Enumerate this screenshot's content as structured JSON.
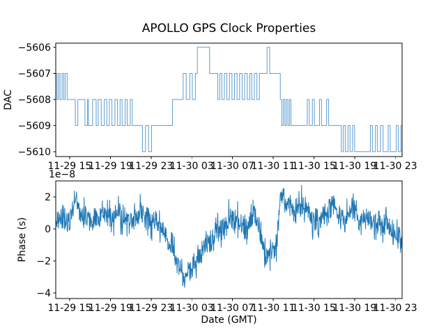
{
  "title": "APOLLO GPS Clock Properties",
  "figure": {
    "background": "#ffffff",
    "spine_color": "#000000",
    "accent_color": "#1f77b4"
  },
  "chart_data": [
    {
      "type": "line",
      "subplot": "dac",
      "ylabel": "DAC",
      "draw_style": "steps-post",
      "line_color": "#5b9dd0",
      "xlim_hours": [
        -1.37,
        32.67
      ],
      "ylim": [
        -5610.19,
        -5605.84
      ],
      "yticks": [
        -5606,
        -5607,
        -5608,
        -5609,
        -5610
      ],
      "ytick_labels": [
        "−5606",
        "−5607",
        "−5608",
        "−5609",
        "−5610"
      ],
      "x_tick_hours": [
        0,
        4,
        8,
        12,
        16,
        20,
        24,
        28,
        32
      ],
      "x_tick_labels": [
        "11-29 15",
        "11-29 19",
        "11-29 23",
        "11-30 03",
        "11-30 07",
        "11-30 11",
        "11-30 15",
        "11-30 19",
        "11-30 23"
      ],
      "grid": false,
      "steps": [
        [
          -1.37,
          -5607
        ],
        [
          -1.25,
          -5608
        ],
        [
          -1.1,
          -5607
        ],
        [
          -0.95,
          -5608
        ],
        [
          -0.75,
          -5607
        ],
        [
          -0.6,
          -5608
        ],
        [
          -0.45,
          -5607
        ],
        [
          -0.25,
          -5608
        ],
        [
          0.55,
          -5609
        ],
        [
          0.8,
          -5608
        ],
        [
          1.5,
          -5609
        ],
        [
          1.75,
          -5608
        ],
        [
          1.85,
          -5609
        ],
        [
          2.25,
          -5608
        ],
        [
          2.6,
          -5609
        ],
        [
          2.8,
          -5608
        ],
        [
          3.1,
          -5609
        ],
        [
          3.4,
          -5608
        ],
        [
          3.65,
          -5609
        ],
        [
          3.9,
          -5608
        ],
        [
          4.15,
          -5609
        ],
        [
          4.45,
          -5608
        ],
        [
          4.7,
          -5609
        ],
        [
          4.95,
          -5608
        ],
        [
          5.15,
          -5609
        ],
        [
          5.45,
          -5608
        ],
        [
          5.65,
          -5609
        ],
        [
          5.95,
          -5608
        ],
        [
          6.15,
          -5609
        ],
        [
          7.15,
          -5610
        ],
        [
          7.45,
          -5609
        ],
        [
          7.75,
          -5610
        ],
        [
          8.05,
          -5609
        ],
        [
          10.1,
          -5608
        ],
        [
          11.15,
          -5607
        ],
        [
          11.45,
          -5608
        ],
        [
          11.8,
          -5607
        ],
        [
          12.05,
          -5608
        ],
        [
          12.35,
          -5607
        ],
        [
          12.55,
          -5606
        ],
        [
          13.75,
          -5607
        ],
        [
          14.55,
          -5608
        ],
        [
          14.75,
          -5607
        ],
        [
          14.95,
          -5608
        ],
        [
          15.2,
          -5607
        ],
        [
          15.45,
          -5608
        ],
        [
          15.7,
          -5607
        ],
        [
          15.95,
          -5608
        ],
        [
          16.2,
          -5607
        ],
        [
          16.45,
          -5608
        ],
        [
          16.7,
          -5607
        ],
        [
          16.95,
          -5608
        ],
        [
          17.2,
          -5607
        ],
        [
          17.45,
          -5608
        ],
        [
          17.7,
          -5607
        ],
        [
          17.9,
          -5608
        ],
        [
          18.15,
          -5607
        ],
        [
          18.4,
          -5608
        ],
        [
          18.65,
          -5607
        ],
        [
          19.4,
          -5606
        ],
        [
          19.65,
          -5607
        ],
        [
          20.7,
          -5608
        ],
        [
          20.85,
          -5609
        ],
        [
          21.0,
          -5608
        ],
        [
          21.15,
          -5609
        ],
        [
          21.3,
          -5608
        ],
        [
          21.45,
          -5609
        ],
        [
          21.6,
          -5608
        ],
        [
          21.75,
          -5609
        ],
        [
          23.35,
          -5608
        ],
        [
          23.55,
          -5609
        ],
        [
          23.85,
          -5608
        ],
        [
          24.05,
          -5609
        ],
        [
          24.55,
          -5608
        ],
        [
          24.75,
          -5609
        ],
        [
          25.25,
          -5608
        ],
        [
          25.45,
          -5609
        ],
        [
          26.7,
          -5610
        ],
        [
          26.9,
          -5609
        ],
        [
          27.1,
          -5610
        ],
        [
          27.35,
          -5609
        ],
        [
          27.55,
          -5610
        ],
        [
          27.8,
          -5609
        ],
        [
          28.0,
          -5610
        ],
        [
          29.55,
          -5609
        ],
        [
          29.75,
          -5610
        ],
        [
          30.05,
          -5609
        ],
        [
          30.25,
          -5610
        ],
        [
          30.55,
          -5609
        ],
        [
          30.8,
          -5610
        ],
        [
          31.3,
          -5609
        ],
        [
          31.5,
          -5610
        ],
        [
          32.1,
          -5609
        ],
        [
          32.3,
          -5610
        ],
        [
          32.55,
          -5609
        ],
        [
          32.67,
          -5609
        ]
      ]
    },
    {
      "type": "line",
      "subplot": "phase",
      "ylabel": "Phase (s)",
      "xlabel": "Date (GMT)",
      "offset_text": "1e−8",
      "line_color": "#1f77b4",
      "xlim_hours": [
        -1.37,
        32.67
      ],
      "ylim": [
        -4.35,
        3.0
      ],
      "yticks": [
        2,
        0,
        -2,
        -4
      ],
      "ytick_labels": [
        "2",
        "0",
        "−2",
        "−4"
      ],
      "x_tick_hours": [
        0,
        4,
        8,
        12,
        16,
        20,
        24,
        28,
        32
      ],
      "x_tick_labels": [
        "11-29 15",
        "11-29 19",
        "11-29 23",
        "11-30 03",
        "11-30 07",
        "11-30 11",
        "11-30 15",
        "11-30 19",
        "11-30 23"
      ],
      "grid": false,
      "units": "1e-8 s",
      "trend": [
        [
          -1.37,
          0.35
        ],
        [
          0,
          0.4
        ],
        [
          0.5,
          1.6
        ],
        [
          0.8,
          1.3
        ],
        [
          1.5,
          0.8
        ],
        [
          2.5,
          0.6
        ],
        [
          3.5,
          0.9
        ],
        [
          4.2,
          0.4
        ],
        [
          5.0,
          0.8
        ],
        [
          5.6,
          0.5
        ],
        [
          6.5,
          0.6
        ],
        [
          7.0,
          1.1
        ],
        [
          7.5,
          0.6
        ],
        [
          8.5,
          0.4
        ],
        [
          9.5,
          -0.3
        ],
        [
          10.2,
          -1.2
        ],
        [
          10.8,
          -2.2
        ],
        [
          11.2,
          -2.9
        ],
        [
          11.5,
          -2.5
        ],
        [
          12.0,
          -2.4
        ],
        [
          12.5,
          -1.7
        ],
        [
          13.2,
          -1.2
        ],
        [
          13.8,
          -0.8
        ],
        [
          14.5,
          -0.3
        ],
        [
          15.5,
          0.2
        ],
        [
          16.2,
          0.7
        ],
        [
          16.8,
          0.3
        ],
        [
          17.5,
          0.2
        ],
        [
          18.2,
          1.0
        ],
        [
          18.6,
          0.4
        ],
        [
          19.0,
          -1.2
        ],
        [
          19.3,
          -1.8
        ],
        [
          19.8,
          -1.3
        ],
        [
          20.3,
          -0.9
        ],
        [
          20.6,
          1.2
        ],
        [
          20.9,
          2.2
        ],
        [
          21.3,
          1.3
        ],
        [
          22.0,
          1.2
        ],
        [
          22.7,
          1.4
        ],
        [
          23.3,
          1.0
        ],
        [
          23.9,
          0.6
        ],
        [
          24.6,
          0.6
        ],
        [
          25.3,
          0.9
        ],
        [
          25.9,
          1.2
        ],
        [
          26.5,
          1.0
        ],
        [
          27.2,
          0.8
        ],
        [
          27.9,
          1.0
        ],
        [
          28.6,
          0.6
        ],
        [
          29.3,
          0.8
        ],
        [
          30.0,
          0.4
        ],
        [
          30.7,
          0.3
        ],
        [
          31.3,
          0.1
        ],
        [
          31.9,
          -0.1
        ],
        [
          32.3,
          -0.3
        ],
        [
          32.67,
          -0.6
        ]
      ],
      "noise": {
        "seed": 20231130,
        "sigma": 0.9,
        "spike_probability": 0.02,
        "spike_scale": 2.1,
        "n_points": 1100
      }
    }
  ]
}
